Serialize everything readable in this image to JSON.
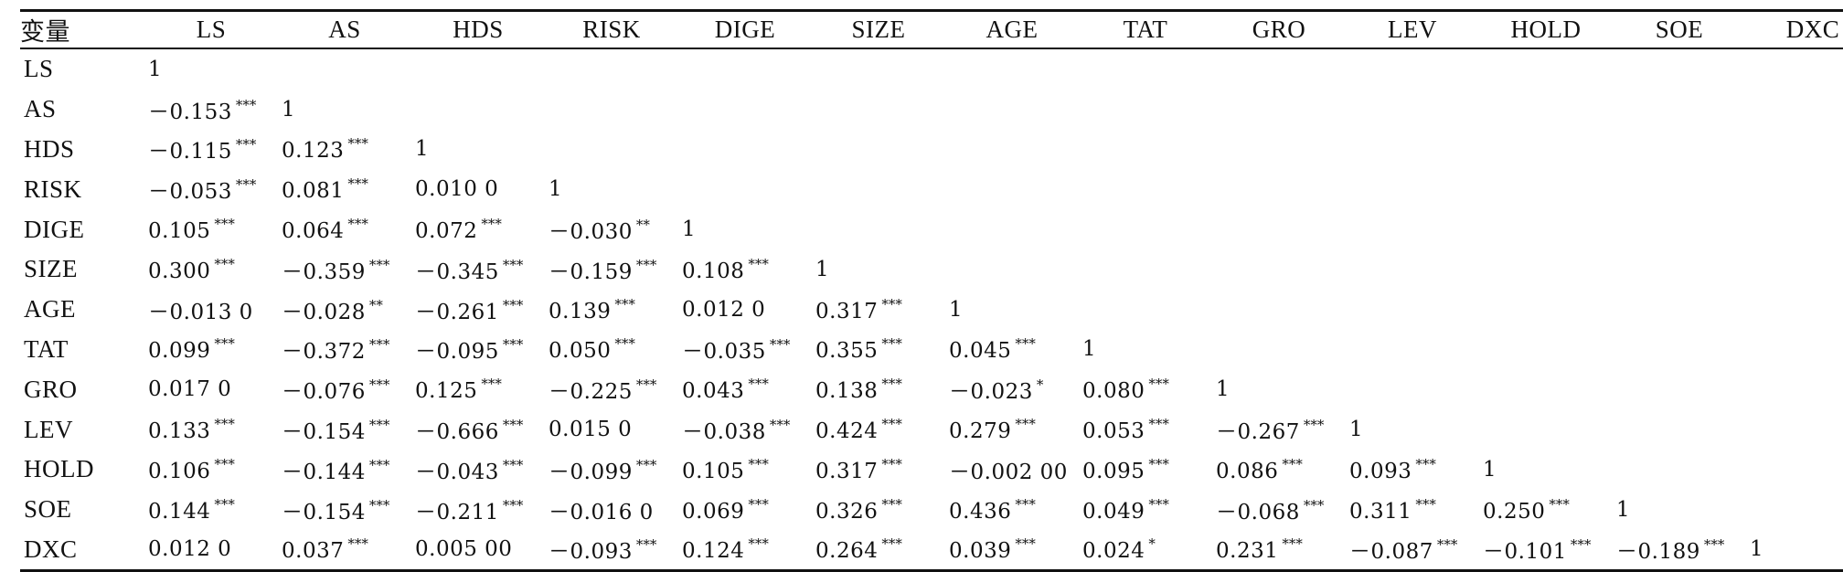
{
  "headers": [
    "变量",
    "LS",
    "AS",
    "HDS",
    "RISK",
    "DIGE",
    "SIZE",
    "AGE",
    "TAT",
    "GRO",
    "LEV",
    "HOLD",
    "SOE",
    "DXC"
  ],
  "rows": [
    {
      "var": "LS",
      "cells": [
        {
          "v": "1",
          "s": ""
        }
      ]
    },
    {
      "var": "AS",
      "cells": [
        {
          "v": "－0.153",
          "s": "***"
        },
        {
          "v": "1",
          "s": ""
        }
      ]
    },
    {
      "var": "HDS",
      "cells": [
        {
          "v": "－0.115",
          "s": "***"
        },
        {
          "v": "0.123",
          "s": "***"
        },
        {
          "v": "1",
          "s": ""
        }
      ]
    },
    {
      "var": "RISK",
      "cells": [
        {
          "v": "－0.053",
          "s": "***"
        },
        {
          "v": "0.081",
          "s": "***"
        },
        {
          "v": "0.010 0",
          "s": ""
        },
        {
          "v": "1",
          "s": ""
        }
      ]
    },
    {
      "var": "DIGE",
      "cells": [
        {
          "v": "0.105",
          "s": "***"
        },
        {
          "v": "0.064",
          "s": "***"
        },
        {
          "v": "0.072",
          "s": "***"
        },
        {
          "v": "－0.030",
          "s": "**"
        },
        {
          "v": "1",
          "s": ""
        }
      ]
    },
    {
      "var": "SIZE",
      "cells": [
        {
          "v": "0.300",
          "s": "***"
        },
        {
          "v": "－0.359",
          "s": "***"
        },
        {
          "v": "－0.345",
          "s": "***"
        },
        {
          "v": "－0.159",
          "s": "***"
        },
        {
          "v": "0.108",
          "s": "***"
        },
        {
          "v": "1",
          "s": ""
        }
      ]
    },
    {
      "var": "AGE",
      "cells": [
        {
          "v": "－0.013 0",
          "s": ""
        },
        {
          "v": "－0.028",
          "s": "**"
        },
        {
          "v": "－0.261",
          "s": "***"
        },
        {
          "v": "0.139",
          "s": "***"
        },
        {
          "v": "0.012 0",
          "s": ""
        },
        {
          "v": "0.317",
          "s": "***"
        },
        {
          "v": "1",
          "s": ""
        }
      ]
    },
    {
      "var": "TAT",
      "cells": [
        {
          "v": "0.099",
          "s": "***"
        },
        {
          "v": "－0.372",
          "s": "***"
        },
        {
          "v": "－0.095",
          "s": "***"
        },
        {
          "v": "0.050",
          "s": "***"
        },
        {
          "v": "－0.035",
          "s": "***"
        },
        {
          "v": "0.355",
          "s": "***"
        },
        {
          "v": "0.045",
          "s": "***"
        },
        {
          "v": "1",
          "s": ""
        }
      ]
    },
    {
      "var": "GRO",
      "cells": [
        {
          "v": "0.017 0",
          "s": ""
        },
        {
          "v": "－0.076",
          "s": "***"
        },
        {
          "v": "0.125",
          "s": "***"
        },
        {
          "v": "－0.225",
          "s": "***"
        },
        {
          "v": "0.043",
          "s": "***"
        },
        {
          "v": "0.138",
          "s": "***"
        },
        {
          "v": "－0.023",
          "s": "*"
        },
        {
          "v": "0.080",
          "s": "***"
        },
        {
          "v": "1",
          "s": ""
        }
      ]
    },
    {
      "var": "LEV",
      "cells": [
        {
          "v": "0.133",
          "s": "***"
        },
        {
          "v": "－0.154",
          "s": "***"
        },
        {
          "v": "－0.666",
          "s": "***"
        },
        {
          "v": "0.015 0",
          "s": ""
        },
        {
          "v": "－0.038",
          "s": "***"
        },
        {
          "v": "0.424",
          "s": "***"
        },
        {
          "v": "0.279",
          "s": "***"
        },
        {
          "v": "0.053",
          "s": "***"
        },
        {
          "v": "－0.267",
          "s": "***"
        },
        {
          "v": "1",
          "s": ""
        }
      ]
    },
    {
      "var": "HOLD",
      "cells": [
        {
          "v": "0.106",
          "s": "***"
        },
        {
          "v": "－0.144",
          "s": "***"
        },
        {
          "v": "－0.043",
          "s": "***"
        },
        {
          "v": "－0.099",
          "s": "***"
        },
        {
          "v": "0.105",
          "s": "***"
        },
        {
          "v": "0.317",
          "s": "***"
        },
        {
          "v": "－0.002 00",
          "s": ""
        },
        {
          "v": "0.095",
          "s": "***"
        },
        {
          "v": "0.086",
          "s": "***"
        },
        {
          "v": "0.093",
          "s": "***"
        },
        {
          "v": "1",
          "s": ""
        }
      ]
    },
    {
      "var": "SOE",
      "cells": [
        {
          "v": "0.144",
          "s": "***"
        },
        {
          "v": "－0.154",
          "s": "***"
        },
        {
          "v": "－0.211",
          "s": "***"
        },
        {
          "v": "－0.016 0",
          "s": ""
        },
        {
          "v": "0.069",
          "s": "***"
        },
        {
          "v": "0.326",
          "s": "***"
        },
        {
          "v": "0.436",
          "s": "***"
        },
        {
          "v": "0.049",
          "s": "***"
        },
        {
          "v": "－0.068",
          "s": "***"
        },
        {
          "v": "0.311",
          "s": "***"
        },
        {
          "v": "0.250",
          "s": "***"
        },
        {
          "v": "1",
          "s": ""
        }
      ]
    },
    {
      "var": "DXC",
      "cells": [
        {
          "v": "0.012 0",
          "s": ""
        },
        {
          "v": "0.037",
          "s": "***"
        },
        {
          "v": "0.005 00",
          "s": ""
        },
        {
          "v": "－0.093",
          "s": "***"
        },
        {
          "v": "0.124",
          "s": "***"
        },
        {
          "v": "0.264",
          "s": "***"
        },
        {
          "v": "0.039",
          "s": "***"
        },
        {
          "v": "0.024",
          "s": "*"
        },
        {
          "v": "0.231",
          "s": "***"
        },
        {
          "v": "－0.087",
          "s": "***"
        },
        {
          "v": "－0.101",
          "s": "***"
        },
        {
          "v": "－0.189",
          "s": "***"
        },
        {
          "v": "1",
          "s": ""
        }
      ]
    }
  ]
}
